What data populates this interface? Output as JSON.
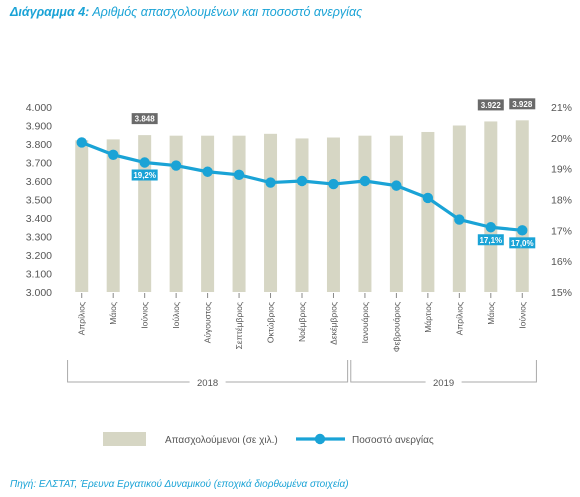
{
  "title": {
    "lead": "Διάγραμμα 4:",
    "rest": " Αριθμός απασχολουμένων και ποσοστό ανεργίας"
  },
  "source": "Πηγή: ΕΛΣΤΑΤ, Έρευνα Εργατικού Δυναμικού (εποχικά διορθωμένα στοιχεία)",
  "colors": {
    "bar": "#d6d6c4",
    "line": "#1aa3d6",
    "barLabel": "#6a6a6a",
    "title": "#1aa3d6"
  },
  "chart_data": {
    "type": "bar",
    "categories": [
      "Απρίλιος",
      "Μάιος",
      "Ιούνιος",
      "Ιούλιος",
      "Αύγουστος",
      "Σεπτέμβριος",
      "Οκτώβριος",
      "Νοέμβριος",
      "Δεκέμβριος",
      "Ιανουάριος",
      "Φεβρουάριος",
      "Μάρτιος",
      "Απρίλιος",
      "Μάιος",
      "Ιούνιος"
    ],
    "groups": [
      {
        "label": "2018",
        "from": 0,
        "to": 8
      },
      {
        "label": "2019",
        "from": 9,
        "to": 14
      }
    ],
    "series": [
      {
        "name": "Απασχολούμενοι (σε χιλ.)",
        "type": "bar",
        "axis": "left",
        "values": [
          3.82,
          3.825,
          3.848,
          3.845,
          3.845,
          3.845,
          3.855,
          3.83,
          3.835,
          3.845,
          3.845,
          3.865,
          3.9,
          3.922,
          3.928
        ]
      },
      {
        "name": "Ποσοστό ανεργίας",
        "type": "line",
        "axis": "right",
        "values": [
          19.85,
          19.45,
          19.2,
          19.1,
          18.9,
          18.8,
          18.55,
          18.6,
          18.5,
          18.6,
          18.45,
          18.05,
          17.35,
          17.1,
          17.0
        ]
      }
    ],
    "annotations": [
      {
        "series": 0,
        "index": 2,
        "text": "3.848"
      },
      {
        "series": 0,
        "index": 13,
        "text": "3.922"
      },
      {
        "series": 0,
        "index": 14,
        "text": "3.928"
      },
      {
        "series": 1,
        "index": 2,
        "text": "19,2%"
      },
      {
        "series": 1,
        "index": 13,
        "text": "17,1%"
      },
      {
        "series": 1,
        "index": 14,
        "text": "17,0%"
      }
    ],
    "yLeft": {
      "min": 3.0,
      "max": 4.0,
      "ticks": [
        "3.000",
        "3.100",
        "3.200",
        "3.300",
        "3.400",
        "3.500",
        "3.600",
        "3.700",
        "3.800",
        "3.900",
        "4.000"
      ]
    },
    "yRight": {
      "min": 15,
      "max": 21,
      "ticks": [
        "15%",
        "16%",
        "17%",
        "18%",
        "19%",
        "20%",
        "21%"
      ]
    },
    "legend": {
      "position": "bottom"
    }
  }
}
